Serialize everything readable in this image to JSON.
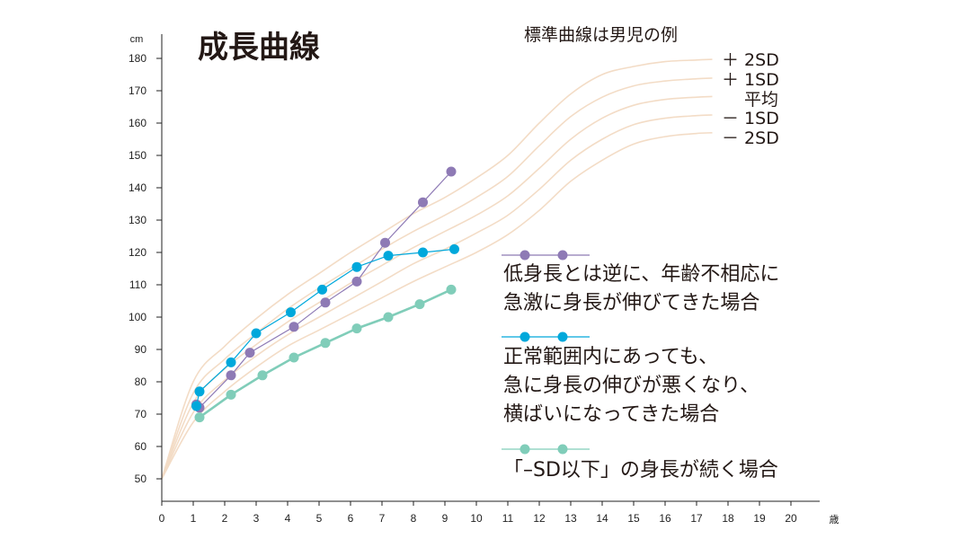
{
  "title": "成長曲線",
  "subtitle": "標準曲線は男児の例",
  "chart_data": {
    "type": "line",
    "y_unit": "cm",
    "x_unit": "歳",
    "xlim": [
      0,
      20
    ],
    "ylim": [
      45,
      190
    ],
    "x_ticks": [
      "0",
      "1",
      "2",
      "3",
      "4",
      "5",
      "6",
      "7",
      "8",
      "9",
      "10",
      "11",
      "12",
      "13",
      "14",
      "15",
      "16",
      "17",
      "18",
      "19",
      "20"
    ],
    "y_ticks": [
      "50",
      "60",
      "70",
      "80",
      "90",
      "100",
      "110",
      "120",
      "130",
      "140",
      "150",
      "160",
      "170",
      "180"
    ],
    "grid": false,
    "reference_curves": [
      {
        "name": "＋ 2SD",
        "x": [
          0,
          1,
          2,
          3,
          4,
          5,
          6,
          7,
          8,
          9,
          10,
          11,
          12,
          13,
          14,
          15,
          16,
          17,
          17.5
        ],
        "y": [
          50,
          80,
          91,
          99.5,
          107,
          113.5,
          120,
          126,
          132,
          137,
          143,
          150,
          160,
          169,
          175,
          177.5,
          179,
          179.5,
          179.7
        ]
      },
      {
        "name": "＋ 1SD",
        "x": [
          0,
          1,
          2,
          3,
          4,
          5,
          6,
          7,
          8,
          9,
          10,
          11,
          12,
          13,
          14,
          15,
          16,
          17,
          17.5
        ],
        "y": [
          50,
          76.5,
          87,
          95,
          102.5,
          109,
          115,
          121,
          126.5,
          131.5,
          137,
          143.5,
          153,
          162,
          168,
          171.5,
          173,
          173.7,
          173.9
        ]
      },
      {
        "name": "平均",
        "x": [
          0,
          1,
          2,
          3,
          4,
          5,
          6,
          7,
          8,
          9,
          10,
          11,
          12,
          13,
          14,
          15,
          16,
          17,
          17.5
        ],
        "y": [
          50,
          73.5,
          84,
          91.5,
          98.5,
          104.5,
          110.5,
          116,
          121.5,
          126.5,
          131.5,
          137.5,
          146,
          155,
          161.5,
          165.5,
          167.3,
          168,
          168.2
        ]
      },
      {
        "name": "－ 1SD",
        "x": [
          0,
          1,
          2,
          3,
          4,
          5,
          6,
          7,
          8,
          9,
          10,
          11,
          12,
          13,
          14,
          15,
          16,
          17,
          17.5
        ],
        "y": [
          50,
          70.5,
          80.5,
          88,
          94.5,
          100,
          105.5,
          111,
          116.5,
          121,
          126,
          131.5,
          139.5,
          148.5,
          155,
          159.5,
          161.5,
          162.3,
          162.5
        ]
      },
      {
        "name": "－ 2SD",
        "x": [
          0,
          1,
          2,
          3,
          4,
          5,
          6,
          7,
          8,
          9,
          10,
          11,
          12,
          13,
          14,
          15,
          16,
          17,
          17.5
        ],
        "y": [
          50,
          67.5,
          77,
          84.5,
          91,
          96,
          101,
          106,
          111,
          115.5,
          120,
          125.5,
          133,
          142,
          148.5,
          153.5,
          155.8,
          156.8,
          157
        ]
      }
    ],
    "series": [
      {
        "name": "低身長とは逆に、年齢不相応に急激に身長が伸びてきた場合",
        "color": "#8e7ab5",
        "x": [
          1.1,
          1.2,
          2.2,
          2.8,
          4.2,
          5.2,
          6.2,
          7.1,
          8.3,
          9.2
        ],
        "y": [
          73,
          72,
          82,
          89,
          97,
          104.5,
          111,
          123,
          135.5,
          145
        ]
      },
      {
        "name": "正常範囲内にあっても、急に身長の伸びが悪くなり、横ばいになってきた場合",
        "color": "#00a8db",
        "x": [
          1.1,
          1.2,
          2.2,
          3.0,
          4.1,
          5.1,
          6.2,
          7.2,
          8.3,
          9.3
        ],
        "y": [
          72.5,
          77,
          86,
          95,
          101.5,
          108.5,
          115.5,
          119,
          120,
          121
        ]
      },
      {
        "name": "「–SD以下」の身長が続く場合",
        "color": "#80cdb9",
        "x": [
          1.2,
          2.2,
          3.2,
          4.2,
          5.2,
          6.2,
          7.2,
          8.2,
          9.2
        ],
        "y": [
          69,
          76,
          82,
          87.5,
          92,
          96.5,
          100,
          104,
          108.5
        ]
      }
    ],
    "legend": {
      "placement": "right",
      "entries": [
        {
          "lines": [
            "低身長とは逆に、年齢不相応に",
            "急激に身長が伸びてきた場合"
          ]
        },
        {
          "lines": [
            "正常範囲内にあっても、",
            "急に身長の伸びが悪くなり、",
            "横ばいになってきた場合"
          ]
        },
        {
          "lines": [
            "「–SD以下」の身長が続く場合"
          ]
        }
      ]
    }
  }
}
